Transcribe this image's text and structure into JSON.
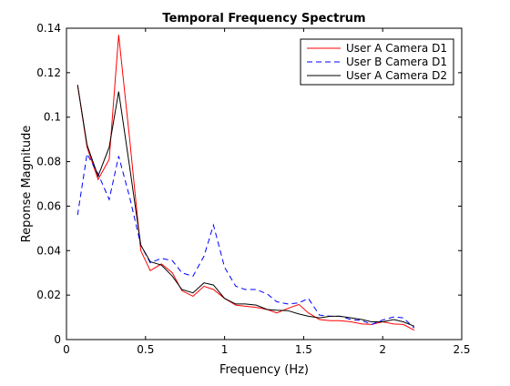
{
  "chart_data": {
    "type": "line",
    "title": "Temporal Frequency Spectrum",
    "xlabel": "Frequency (Hz)",
    "ylabel": "Reponse Magnitude",
    "xlim": [
      0,
      2.5
    ],
    "ylim": [
      0,
      0.14
    ],
    "xticks": [
      0,
      0.5,
      1,
      1.5,
      2,
      2.5
    ],
    "xtick_labels": [
      "0",
      "0.5",
      "1",
      "1.5",
      "2",
      "2.5"
    ],
    "yticks": [
      0,
      0.02,
      0.04,
      0.06,
      0.08,
      0.1,
      0.12,
      0.14
    ],
    "ytick_labels": [
      "0",
      "0.02",
      "0.04",
      "0.06",
      "0.08",
      "0.1",
      "0.12",
      "0.14"
    ],
    "grid": false,
    "legend_position": "top-right",
    "series": [
      {
        "name": "User A Camera D1",
        "color": "#ff0000",
        "dash": "solid",
        "x": [
          0.07,
          0.13,
          0.2,
          0.27,
          0.33,
          0.4,
          0.47,
          0.53,
          0.6,
          0.67,
          0.73,
          0.8,
          0.87,
          0.93,
          1.0,
          1.07,
          1.13,
          1.2,
          1.27,
          1.33,
          1.4,
          1.47,
          1.53,
          1.6,
          1.67,
          1.73,
          1.8,
          1.87,
          1.93,
          2.0,
          2.07,
          2.13,
          2.2
        ],
        "y": [
          0.1145,
          0.0865,
          0.072,
          0.081,
          0.137,
          0.09,
          0.04,
          0.031,
          0.034,
          0.03,
          0.022,
          0.0195,
          0.024,
          0.0225,
          0.0185,
          0.0155,
          0.015,
          0.0145,
          0.0135,
          0.012,
          0.014,
          0.0158,
          0.012,
          0.009,
          0.0085,
          0.0085,
          0.008,
          0.007,
          0.0068,
          0.008,
          0.007,
          0.0068,
          0.0042
        ]
      },
      {
        "name": "User B Camera D1",
        "color": "#0000ff",
        "dash": "dashed",
        "x": [
          0.07,
          0.13,
          0.2,
          0.27,
          0.33,
          0.4,
          0.47,
          0.53,
          0.6,
          0.67,
          0.73,
          0.8,
          0.87,
          0.93,
          1.0,
          1.07,
          1.13,
          1.2,
          1.27,
          1.33,
          1.4,
          1.47,
          1.53,
          1.6,
          1.67,
          1.73,
          1.8,
          1.87,
          1.93,
          2.0,
          2.07,
          2.13,
          2.2
        ],
        "y": [
          0.056,
          0.0835,
          0.0745,
          0.063,
          0.0825,
          0.064,
          0.0425,
          0.0345,
          0.0365,
          0.0355,
          0.03,
          0.0285,
          0.0375,
          0.0515,
          0.0325,
          0.024,
          0.0225,
          0.0225,
          0.0205,
          0.017,
          0.016,
          0.0165,
          0.0185,
          0.011,
          0.0105,
          0.0105,
          0.009,
          0.0085,
          0.0068,
          0.0088,
          0.0102,
          0.0098,
          0.0052
        ]
      },
      {
        "name": "User A Camera D2",
        "color": "#000000",
        "dash": "solid",
        "x": [
          0.07,
          0.13,
          0.2,
          0.27,
          0.33,
          0.4,
          0.47,
          0.53,
          0.6,
          0.67,
          0.73,
          0.8,
          0.87,
          0.93,
          1.0,
          1.07,
          1.13,
          1.2,
          1.27,
          1.33,
          1.4,
          1.47,
          1.53,
          1.6,
          1.67,
          1.73,
          1.8,
          1.87,
          1.93,
          2.0,
          2.07,
          2.13,
          2.2
        ],
        "y": [
          0.1145,
          0.0875,
          0.0735,
          0.0865,
          0.1115,
          0.0775,
          0.0425,
          0.035,
          0.0335,
          0.0285,
          0.0225,
          0.021,
          0.0255,
          0.0245,
          0.0185,
          0.016,
          0.016,
          0.0155,
          0.0135,
          0.0132,
          0.013,
          0.0115,
          0.0105,
          0.0098,
          0.0105,
          0.0105,
          0.0098,
          0.009,
          0.008,
          0.008,
          0.009,
          0.008,
          0.006
        ]
      }
    ]
  }
}
